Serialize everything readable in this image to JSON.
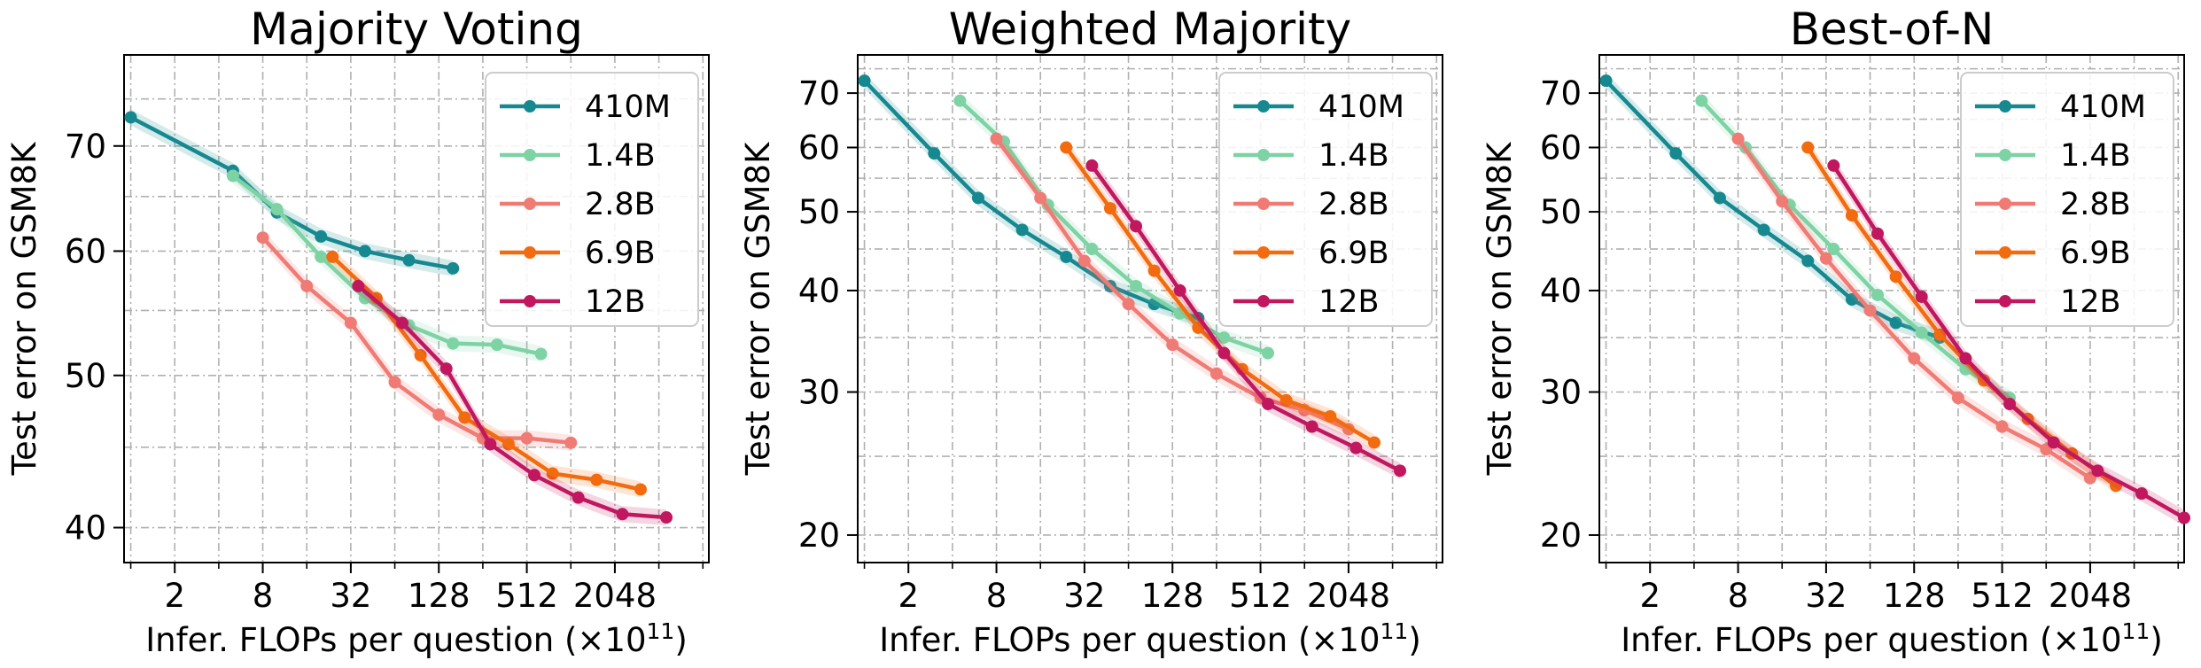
{
  "chart_data": [
    {
      "type": "line",
      "title": "Majority Voting",
      "xlabel": "Infer. FLOPs per question (×10",
      "xlabel_exp": "11",
      "xlabel_close": ")",
      "ylabel": "Test error on GSM8K",
      "xscale": "log2",
      "yscale": "log",
      "xticks": [
        2,
        8,
        32,
        128,
        512,
        2048
      ],
      "yticks": [
        40,
        50,
        60,
        70
      ],
      "xlim": [
        0.9,
        9000
      ],
      "ylim": [
        38,
        80
      ],
      "grid": true,
      "legend_position": "top-right",
      "series": [
        {
          "name": "410M",
          "color": "#16888f",
          "x": [
            1,
            5,
            10,
            20,
            40,
            80,
            160
          ],
          "y": [
            73,
            67.5,
            63.5,
            61.3,
            60,
            59.2,
            58.5
          ]
        },
        {
          "name": "1.4B",
          "color": "#7dd3a4",
          "x": [
            5,
            10,
            20,
            40,
            80,
            160,
            320,
            640
          ],
          "y": [
            67,
            63.8,
            59.5,
            56,
            53.8,
            52.4,
            52.3,
            51.6
          ]
        },
        {
          "name": "2.8B",
          "color": "#f07b74",
          "x": [
            8,
            16,
            32,
            64,
            128,
            256,
            512,
            1024
          ],
          "y": [
            61.2,
            57,
            54,
            49.5,
            47.2,
            45.6,
            45.6,
            45.3
          ]
        },
        {
          "name": "6.9B",
          "color": "#f26b0f",
          "x": [
            24,
            48,
            96,
            192,
            384,
            768,
            1536,
            3072
          ],
          "y": [
            59.5,
            56,
            51.5,
            47,
            45.2,
            43.3,
            42.9,
            42.3
          ]
        },
        {
          "name": "12B",
          "color": "#c0175e",
          "x": [
            36,
            72,
            144,
            288,
            576,
            1152,
            2304,
            4608
          ],
          "y": [
            57,
            54,
            50.5,
            45.2,
            43.2,
            41.8,
            40.8,
            40.6
          ]
        }
      ]
    },
    {
      "type": "line",
      "title": "Weighted Majority",
      "xlabel": "Infer. FLOPs per question (×10",
      "xlabel_exp": "11",
      "xlabel_close": ")",
      "ylabel": "Test error on GSM8K",
      "xscale": "log2",
      "yscale": "log",
      "xticks": [
        2,
        8,
        32,
        128,
        512,
        2048
      ],
      "yticks": [
        20,
        30,
        40,
        50,
        60,
        70
      ],
      "xlim": [
        0.9,
        9000
      ],
      "ylim": [
        18.5,
        78
      ],
      "grid": true,
      "legend_position": "top-right",
      "series": [
        {
          "name": "410M",
          "color": "#16888f",
          "x": [
            1,
            3,
            6,
            12,
            24,
            48,
            96,
            192
          ],
          "y": [
            72.5,
            59,
            52,
            47.5,
            44,
            40.5,
            38.5,
            37
          ]
        },
        {
          "name": "1.4B",
          "color": "#7dd3a4",
          "x": [
            4.5,
            9,
            18,
            36,
            72,
            144,
            288,
            576
          ],
          "y": [
            68.5,
            61,
            51,
            45,
            40.5,
            37.5,
            35,
            33.5
          ]
        },
        {
          "name": "2.8B",
          "color": "#f07b74",
          "x": [
            8,
            16,
            32,
            64,
            128,
            256,
            512,
            1024,
            2048
          ],
          "y": [
            61.5,
            52,
            43.5,
            38.5,
            34.3,
            31.6,
            29.5,
            28.5,
            27
          ]
        },
        {
          "name": "6.9B",
          "color": "#f26b0f",
          "x": [
            24,
            48,
            96,
            192,
            384,
            768,
            1536,
            3072
          ],
          "y": [
            60,
            50.5,
            42.3,
            36,
            32,
            29.3,
            28,
            26
          ]
        },
        {
          "name": "12B",
          "color": "#c0175e",
          "x": [
            36,
            72,
            144,
            288,
            576,
            1152,
            2304,
            4608
          ],
          "y": [
            57,
            48,
            40,
            33.5,
            29,
            27.2,
            25.6,
            24
          ]
        }
      ]
    },
    {
      "type": "line",
      "title": "Best-of-N",
      "xlabel": "Infer. FLOPs per question (×10",
      "xlabel_exp": "11",
      "xlabel_close": ")",
      "ylabel": "Test error on GSM8K",
      "xscale": "log2",
      "yscale": "log",
      "xticks": [
        2,
        8,
        32,
        128,
        512,
        2048
      ],
      "yticks": [
        20,
        30,
        40,
        50,
        60,
        70
      ],
      "xlim": [
        0.9,
        9000
      ],
      "ylim": [
        18.5,
        78
      ],
      "grid": true,
      "legend_position": "top-right",
      "series": [
        {
          "name": "410M",
          "color": "#16888f",
          "x": [
            1,
            3,
            6,
            12,
            24,
            48,
            96,
            192
          ],
          "y": [
            72.5,
            59,
            52,
            47.5,
            43.5,
            39,
            36.5,
            35
          ]
        },
        {
          "name": "1.4B",
          "color": "#7dd3a4",
          "x": [
            4.5,
            9,
            18,
            36,
            72,
            144,
            288,
            576
          ],
          "y": [
            68.5,
            60,
            51,
            45,
            39.5,
            35.5,
            32,
            29.5
          ]
        },
        {
          "name": "2.8B",
          "color": "#f07b74",
          "x": [
            8,
            16,
            32,
            64,
            128,
            256,
            512,
            1024,
            2048
          ],
          "y": [
            61.5,
            51.5,
            43.8,
            37.8,
            33,
            29.5,
            27.2,
            25.5,
            23.5
          ]
        },
        {
          "name": "6.9B",
          "color": "#f26b0f",
          "x": [
            24,
            48,
            96,
            192,
            384,
            768,
            1536,
            3072
          ],
          "y": [
            60,
            49.5,
            41.6,
            35.3,
            31,
            27.8,
            25.2,
            23
          ]
        },
        {
          "name": "12B",
          "color": "#c0175e",
          "x": [
            36,
            72,
            144,
            288,
            576,
            1152,
            2304,
            4608,
            9000
          ],
          "y": [
            57,
            47,
            39.3,
            33,
            29,
            26,
            24,
            22.5,
            21
          ]
        }
      ]
    }
  ]
}
